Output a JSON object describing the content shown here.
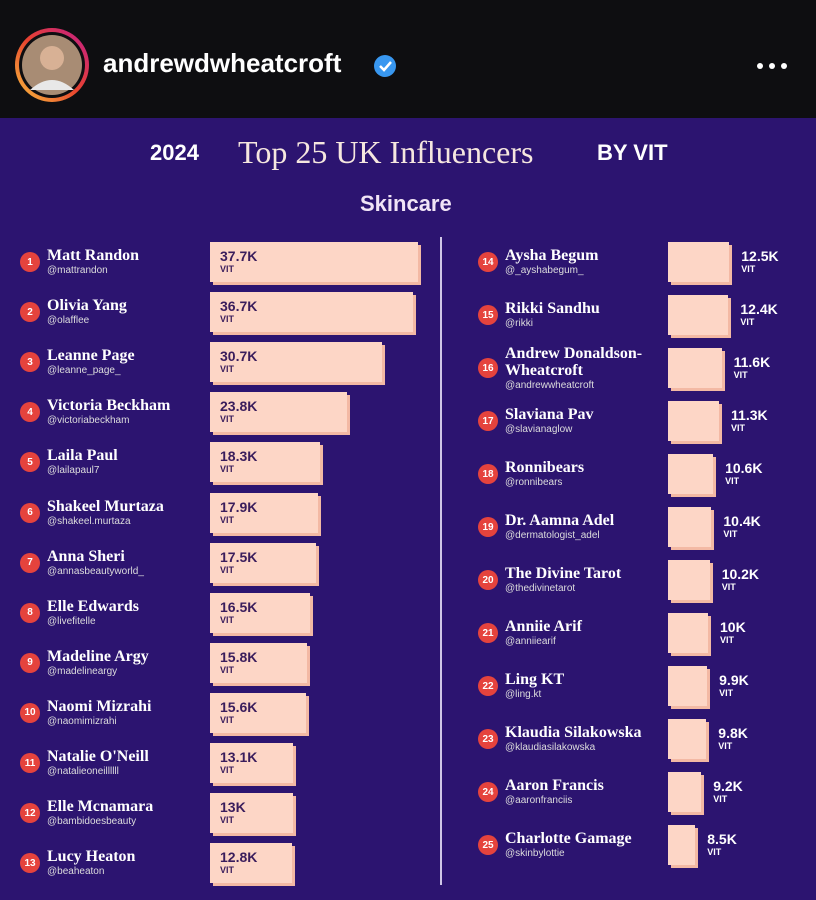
{
  "header": {
    "username": "andrewdwheatcroft"
  },
  "chart_data": {
    "type": "bar",
    "year": "2024",
    "title": "Top 25 UK Influencers",
    "byline": "BY VIT",
    "subtitle": "Skincare",
    "unit_label": "VIT",
    "color": "#fdd6c6",
    "ranks": [
      1,
      2,
      3,
      4,
      5,
      6,
      7,
      8,
      9,
      10,
      11,
      12,
      13,
      14,
      15,
      16,
      17,
      18,
      19,
      20,
      21,
      22,
      23,
      24,
      25
    ],
    "categories": [
      "Matt Randon",
      "Olivia Yang",
      "Leanne Page",
      "Victoria Beckham",
      "Laila Paul",
      "Shakeel Murtaza",
      "Anna Sheri",
      "Elle Edwards",
      "Madeline Argy",
      "Naomi Mizrahi",
      "Natalie O'Neill",
      "Elle Mcnamara",
      "Lucy Heaton",
      "Aysha Begum",
      "Rikki Sandhu",
      "Andrew Donaldson-Wheatcroft",
      "Slaviana Pav",
      "Ronnibears",
      "Dr. Aamna Adel",
      "The Divine Tarot",
      "Anniie Arif",
      "Ling KT",
      "Klaudia Silakowska",
      "Aaron Francis",
      "Charlotte Gamage"
    ],
    "handles": [
      "@mattrandon",
      "@olafflee",
      "@leanne_page_",
      "@victoriabeckham",
      "@lailapaul7",
      "@shakeel.murtaza",
      "@annasbeautyworld_",
      "@livefitelle",
      "@madelineargy",
      "@naomimizrahi",
      "@natalieoneillllll",
      "@bambidoesbeauty",
      "@beaheaton",
      "@_ayshabegum_",
      "@rikki",
      "@andrewwheatcroft",
      "@slavianaglow",
      "@ronnibears",
      "@dermatologist_adel",
      "@thedivinetarot",
      "@anniiearif",
      "@ling.kt",
      "@klaudiasilakowska",
      "@aaronfranciis",
      "@skinbylottie"
    ],
    "values": [
      37700,
      36700,
      30700,
      23800,
      18300,
      17900,
      17500,
      16500,
      15800,
      15600,
      13100,
      13000,
      12800,
      12500,
      12400,
      11600,
      11300,
      10600,
      10400,
      10200,
      10000,
      9900,
      9800,
      9200,
      8500
    ],
    "value_labels": [
      "37.7K",
      "36.7K",
      "30.7K",
      "23.8K",
      "18.3K",
      "17.9K",
      "17.5K",
      "16.5K",
      "15.8K",
      "15.6K",
      "13.1K",
      "13K",
      "12.8K",
      "12.5K",
      "12.4K",
      "11.6K",
      "11.3K",
      "10.6K",
      "10.4K",
      "10.2K",
      "10K",
      "9.9K",
      "9.8K",
      "9.2K",
      "8.5K"
    ]
  }
}
